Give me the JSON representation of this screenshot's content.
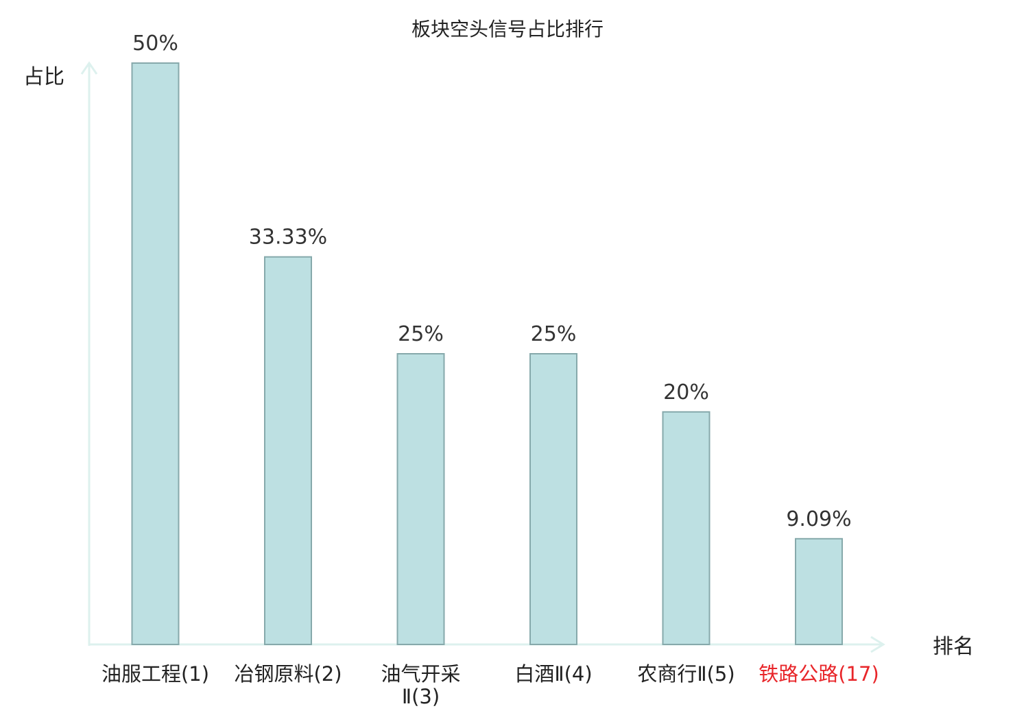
{
  "chart_data": {
    "type": "bar",
    "title": "板块空头信号占比排行",
    "ylabel": "占比",
    "xlabel": "排名",
    "ylim": [
      0,
      50
    ],
    "grid": false,
    "categories": [
      {
        "name": "油服工程",
        "rank": "(1)",
        "lines": [
          "油服工程(1)"
        ],
        "highlight": false
      },
      {
        "name": "冶钢原料",
        "rank": "(2)",
        "lines": [
          "冶钢原料(2)"
        ],
        "highlight": false
      },
      {
        "name": "油气开采",
        "rank": "Ⅱ(3)",
        "lines": [
          "油气开采",
          "Ⅱ(3)"
        ],
        "highlight": false
      },
      {
        "name": "白酒",
        "rank": "Ⅱ(4)",
        "lines": [
          "白酒Ⅱ(4)"
        ],
        "highlight": false
      },
      {
        "name": "农商行",
        "rank": "Ⅱ(5)",
        "lines": [
          "农商行Ⅱ(5)"
        ],
        "highlight": false
      },
      {
        "name": "铁路公路",
        "rank": "(17)",
        "lines": [
          "铁路公路(17)"
        ],
        "highlight": true
      }
    ],
    "values": [
      50,
      33.33,
      25,
      25,
      20,
      9.09
    ],
    "value_labels": [
      "50%",
      "33.33%",
      "25%",
      "25%",
      "20%",
      "9.09%"
    ],
    "colors": {
      "bar_fill": "#bde0e2",
      "bar_stroke": "#86a9ab",
      "axis": "#ddf1ee",
      "highlight": "#e8262a"
    }
  }
}
